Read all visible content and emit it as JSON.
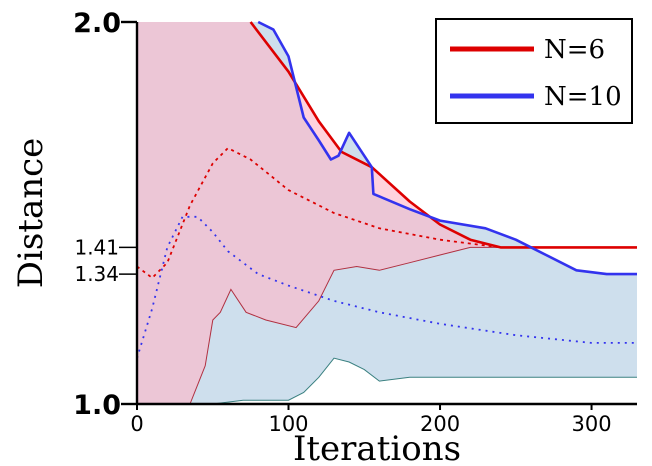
{
  "chart_data": {
    "type": "line",
    "xlabel": "Iterations",
    "ylabel": "Distance",
    "xlim": [
      0,
      330
    ],
    "ylim": [
      1.0,
      2.0
    ],
    "xticks": [
      0,
      100,
      200,
      300
    ],
    "xtick_labels": [
      "0",
      "100",
      "200",
      "300"
    ],
    "yticks_major": [
      1.0,
      2.0
    ],
    "yticks_major_labels": [
      "1.0",
      "2.0"
    ],
    "yticks_minor": [
      1.41,
      1.34
    ],
    "yticks_minor_labels": [
      "1.41",
      "1.34"
    ],
    "grid": false,
    "legend_position": "top-right",
    "series": [
      {
        "name": "N=6",
        "color": "#dd0000",
        "band_color": "#ffb6c8",
        "mean": {
          "x": [
            75,
            100,
            120,
            135,
            155,
            180,
            200,
            220,
            240,
            260,
            280,
            300,
            330
          ],
          "y": [
            2.0,
            1.87,
            1.74,
            1.66,
            1.62,
            1.53,
            1.47,
            1.43,
            1.41,
            1.41,
            1.41,
            1.41,
            1.41
          ]
        },
        "median": {
          "x": [
            0,
            10,
            20,
            35,
            50,
            60,
            75,
            100,
            130,
            160,
            200,
            240,
            280,
            330
          ],
          "y": [
            1.36,
            1.33,
            1.37,
            1.52,
            1.63,
            1.67,
            1.64,
            1.56,
            1.5,
            1.46,
            1.43,
            1.41,
            1.41,
            1.41
          ]
        },
        "lower": {
          "x": [
            35,
            45,
            50,
            55,
            62,
            72,
            85,
            105,
            120,
            130,
            145,
            160,
            180,
            200,
            220,
            240,
            330
          ],
          "y": [
            1.0,
            1.1,
            1.22,
            1.24,
            1.3,
            1.24,
            1.22,
            1.2,
            1.27,
            1.35,
            1.36,
            1.35,
            1.37,
            1.39,
            1.41,
            1.41,
            1.41
          ]
        }
      },
      {
        "name": "N=10",
        "color": "#3333ee",
        "band_color": "#c6d9ea",
        "mean": {
          "x": [
            80,
            90,
            100,
            110,
            120,
            128,
            133,
            140,
            155,
            156,
            180,
            200,
            230,
            250,
            270,
            290,
            310,
            330
          ],
          "y": [
            2.0,
            1.98,
            1.91,
            1.75,
            1.69,
            1.64,
            1.65,
            1.71,
            1.62,
            1.55,
            1.51,
            1.48,
            1.46,
            1.43,
            1.39,
            1.35,
            1.34,
            1.34
          ]
        },
        "median": {
          "x": [
            0,
            10,
            20,
            30,
            40,
            50,
            60,
            80,
            100,
            130,
            160,
            200,
            250,
            300,
            330
          ],
          "y": [
            1.12,
            1.25,
            1.41,
            1.49,
            1.49,
            1.45,
            1.4,
            1.34,
            1.31,
            1.27,
            1.24,
            1.21,
            1.18,
            1.16,
            1.16
          ]
        },
        "lower": {
          "x": [
            40,
            50,
            70,
            100,
            110,
            120,
            130,
            140,
            150,
            160,
            180,
            200,
            250,
            300,
            330
          ],
          "y": [
            1.0,
            1.0,
            1.01,
            1.01,
            1.03,
            1.07,
            1.12,
            1.11,
            1.09,
            1.06,
            1.07,
            1.07,
            1.07,
            1.07,
            1.07
          ]
        }
      }
    ]
  }
}
